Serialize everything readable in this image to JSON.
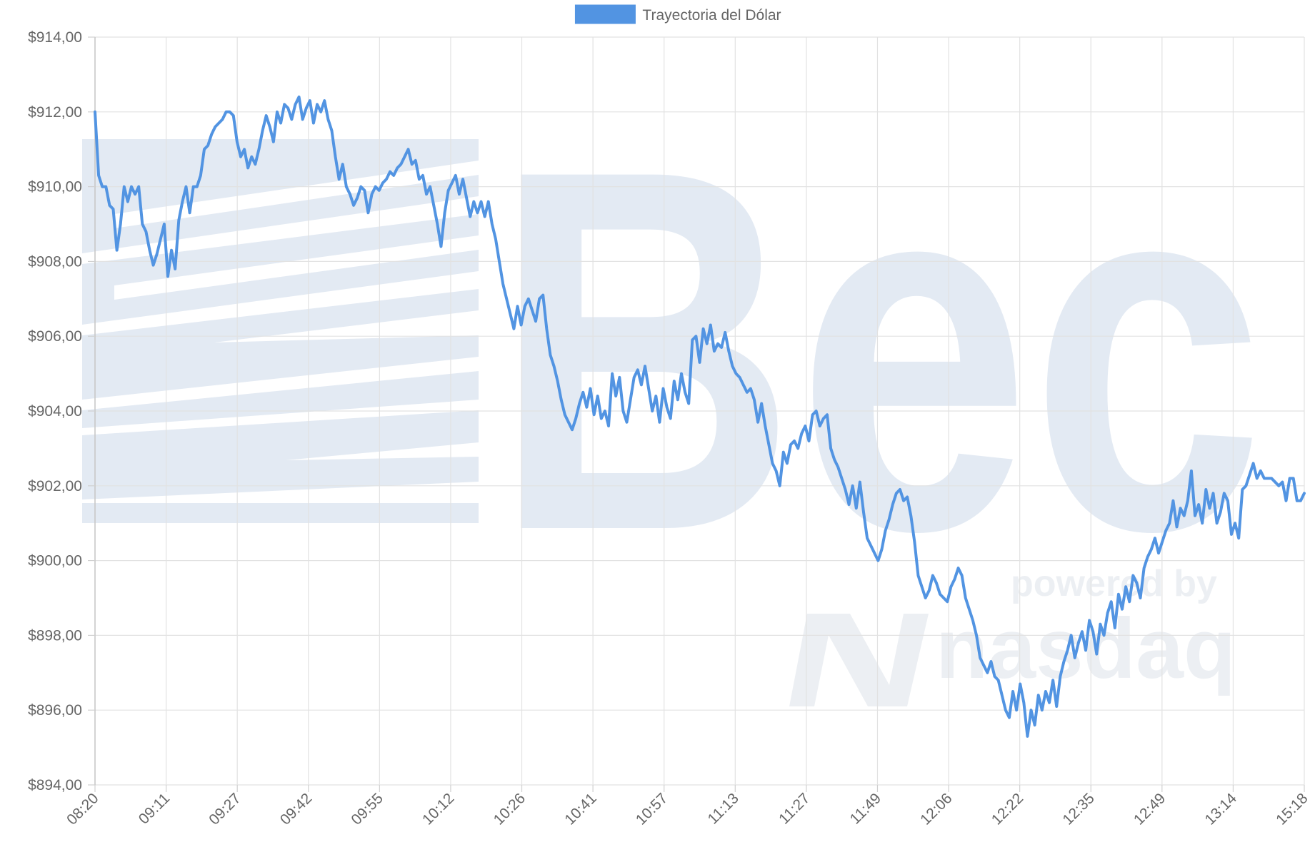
{
  "chart_data": {
    "type": "line",
    "title": "",
    "xlabel": "",
    "ylabel": "",
    "legend": {
      "position": "top-center"
    },
    "grid": true,
    "ylim": [
      894,
      914
    ],
    "y_ticks": [
      "$914,00",
      "$912,00",
      "$910,00",
      "$908,00",
      "$906,00",
      "$904,00",
      "$902,00",
      "$900,00",
      "$898,00",
      "$896,00",
      "$894,00"
    ],
    "x_ticks": [
      "08:20",
      "09:11",
      "09:27",
      "09:42",
      "09:55",
      "10:12",
      "10:26",
      "10:41",
      "10:57",
      "11:13",
      "11:27",
      "11:49",
      "12:06",
      "12:22",
      "12:35",
      "12:49",
      "13:14",
      "15:18"
    ],
    "series": [
      {
        "name": "Trayectoria del Dólar",
        "color": "#5294E2",
        "values": [
          912.0,
          910.3,
          910.0,
          910.0,
          909.5,
          909.4,
          908.3,
          909.0,
          910.0,
          909.6,
          910.0,
          909.8,
          910.0,
          909.0,
          908.8,
          908.3,
          907.9,
          908.2,
          908.6,
          909.0,
          907.6,
          908.3,
          907.8,
          909.1,
          909.6,
          910.0,
          909.3,
          910.0,
          910.0,
          910.3,
          911.0,
          911.1,
          911.4,
          911.6,
          911.7,
          911.8,
          912.0,
          912.0,
          911.9,
          911.2,
          910.8,
          911.0,
          910.5,
          910.8,
          910.6,
          911.0,
          911.5,
          911.9,
          911.6,
          911.2,
          912.0,
          911.7,
          912.2,
          912.1,
          911.8,
          912.2,
          912.4,
          911.8,
          912.1,
          912.3,
          911.7,
          912.2,
          912.0,
          912.3,
          911.8,
          911.5,
          910.8,
          910.2,
          910.6,
          910.0,
          909.8,
          909.5,
          909.7,
          910.0,
          909.9,
          909.3,
          909.8,
          910.0,
          909.9,
          910.1,
          910.2,
          910.4,
          910.3,
          910.5,
          910.6,
          910.8,
          911.0,
          910.6,
          910.7,
          910.2,
          910.3,
          909.8,
          910.0,
          909.5,
          909.0,
          908.4,
          909.3,
          909.9,
          910.1,
          910.3,
          909.8,
          910.2,
          909.7,
          909.2,
          909.6,
          909.3,
          909.6,
          909.2,
          909.6,
          909.0,
          908.6,
          908.0,
          907.4,
          907.0,
          906.6,
          906.2,
          906.8,
          906.3,
          906.8,
          907.0,
          906.7,
          906.4,
          907.0,
          907.1,
          906.2,
          905.5,
          905.2,
          904.8,
          904.3,
          903.9,
          903.7,
          903.5,
          903.8,
          904.2,
          904.5,
          904.1,
          904.6,
          903.9,
          904.4,
          903.8,
          904.0,
          903.6,
          905.0,
          904.4,
          904.9,
          904.0,
          903.7,
          904.3,
          904.9,
          905.1,
          904.7,
          905.2,
          904.6,
          904.0,
          904.4,
          903.7,
          904.6,
          904.1,
          903.8,
          904.8,
          904.3,
          905.0,
          904.5,
          904.2,
          905.9,
          906.0,
          905.3,
          906.2,
          905.8,
          906.3,
          905.6,
          905.8,
          905.7,
          906.1,
          905.6,
          905.2,
          905.0,
          904.9,
          904.7,
          904.5,
          904.6,
          904.3,
          903.7,
          904.2,
          903.6,
          903.1,
          902.6,
          902.4,
          902.0,
          902.9,
          902.6,
          903.1,
          903.2,
          903.0,
          903.4,
          903.6,
          903.2,
          903.9,
          904.0,
          903.6,
          903.8,
          903.9,
          903.0,
          902.7,
          902.5,
          902.2,
          901.9,
          901.5,
          902.0,
          901.4,
          902.1,
          901.3,
          900.6,
          900.4,
          900.2,
          900.0,
          900.3,
          900.8,
          901.1,
          901.5,
          901.8,
          901.9,
          901.6,
          901.7,
          901.2,
          900.5,
          899.6,
          899.3,
          899.0,
          899.2,
          899.6,
          899.4,
          899.1,
          899.0,
          898.9,
          899.3,
          899.5,
          899.8,
          899.6,
          899.0,
          898.7,
          898.4,
          898.0,
          897.4,
          897.2,
          897.0,
          897.3,
          896.9,
          896.8,
          896.4,
          896.0,
          895.8,
          896.5,
          896.0,
          896.7,
          896.2,
          895.3,
          896.0,
          895.6,
          896.4,
          896.0,
          896.5,
          896.2,
          896.8,
          896.1,
          896.9,
          897.3,
          897.6,
          898.0,
          897.4,
          897.8,
          898.1,
          897.6,
          898.4,
          898.1,
          897.5,
          898.3,
          898.0,
          898.6,
          898.9,
          898.2,
          899.1,
          898.7,
          899.3,
          898.9,
          899.6,
          899.4,
          899.0,
          899.8,
          900.1,
          900.3,
          900.6,
          900.2,
          900.5,
          900.8,
          901.0,
          901.6,
          900.9,
          901.4,
          901.2,
          901.6,
          902.4,
          901.2,
          901.5,
          901.0,
          901.9,
          901.4,
          901.8,
          901.0,
          901.3,
          901.8,
          901.6,
          900.7,
          901.0,
          900.6,
          901.9,
          902.0,
          902.3,
          902.6,
          902.2,
          902.4,
          902.2,
          902.2,
          902.2,
          902.1,
          902.0,
          902.1,
          901.6,
          902.2,
          902.2,
          901.6,
          901.6,
          901.8
        ]
      }
    ]
  },
  "watermark": {
    "logo_letters": "Bec",
    "tagline": "powered by",
    "partner": "nasdaq"
  }
}
